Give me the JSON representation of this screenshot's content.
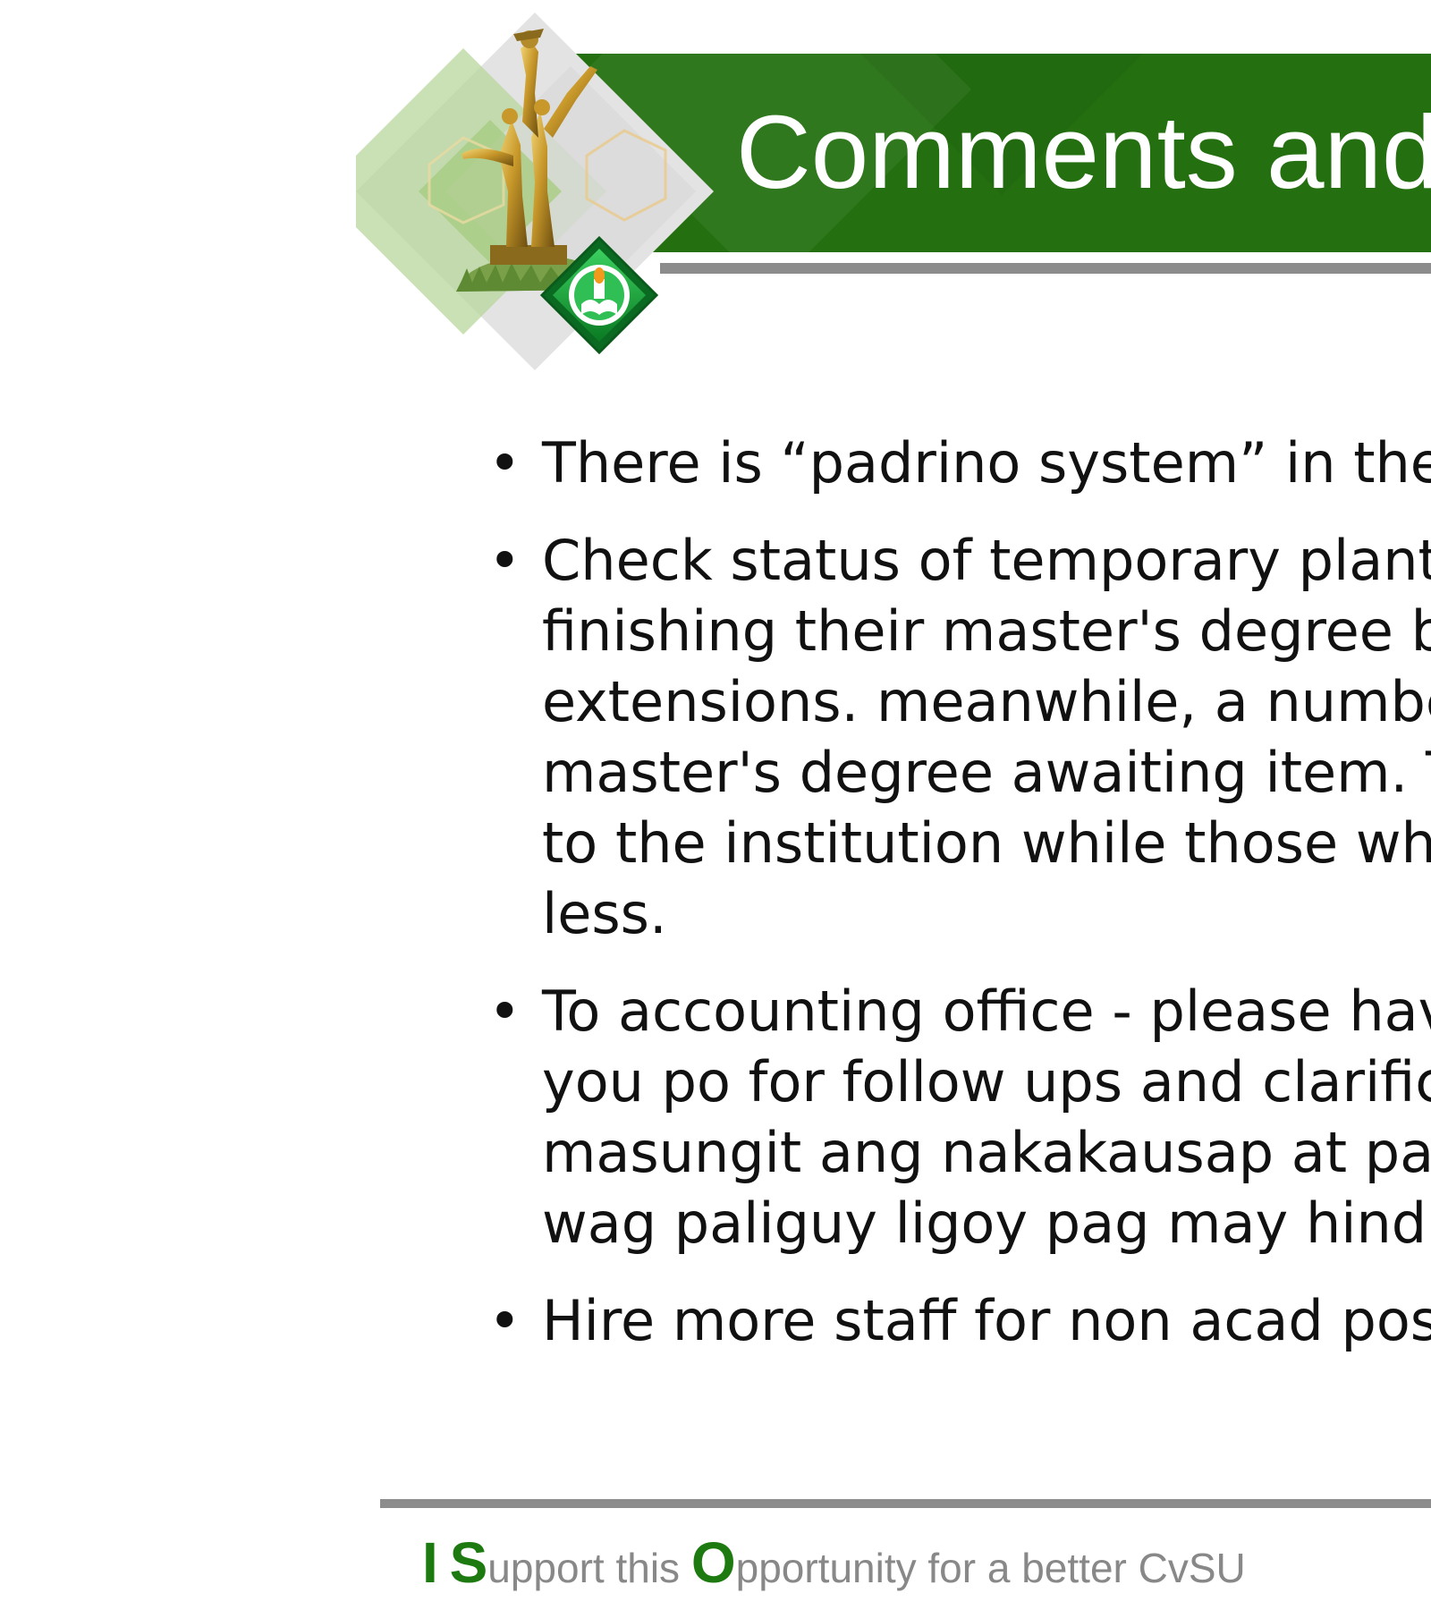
{
  "title": "Comments and",
  "bullets": [
    {
      "lines": [
        "There is “padrino system” in the U"
      ]
    },
    {
      "lines": [
        "Check status of temporary plantill",
        "finishing their master's degree be",
        "extensions. meanwhile, a number",
        "master's degree awaiting item. Th",
        "to the institution while those who",
        "less."
      ]
    },
    {
      "lines": [
        "To accounting office - please have",
        "you po for follow ups and clarifica",
        "masungit ang nakakausap at paki",
        "wag paliguy ligoy pag may hindi n"
      ]
    },
    {
      "lines": [
        "Hire more staff for non acad posit"
      ]
    }
  ],
  "bullet_symbol": "•",
  "footer": {
    "tagline": {
      "i": "I",
      "s": "S",
      "s_rest": "upport this ",
      "o": "O",
      "o_rest": "pportunity for a better CvSU"
    }
  },
  "colors": {
    "banner_green": "#247010",
    "rule_gray": "#8c8c8c",
    "tagline_green": "#1d7a10",
    "tagline_gray": "#888888"
  },
  "icons": {
    "emblem": "university-monument-seal-icon"
  }
}
